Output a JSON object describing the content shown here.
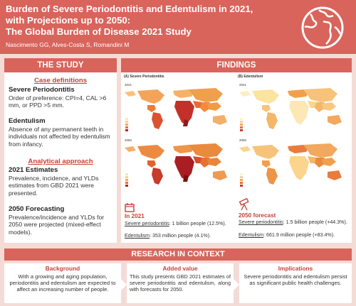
{
  "header": {
    "title_line1": "Burden of Severe Periodontitis and Edentulism in 2021,",
    "title_line2": "with Projections up to 2050:",
    "title_line3": "The Global Burden of Disease 2021 Study",
    "authors": "Nascimento GG, Alves-Costa S, Romandini M"
  },
  "study": {
    "title": "THE STUDY",
    "case_definitions": "Case definitions",
    "perio_heading": "Severe Periodontitis",
    "perio_text": "Order of preference: CPI=4, CAL >6 mm, or PPD >5 mm.",
    "edent_heading": "Edentulism",
    "edent_text": "Absence of any permanent teeth in individuals not affected by edentulism from infancy.",
    "analytical": "Analytical approach",
    "est_heading": "2021 Estimates",
    "est_text": "Prevalence, incidence, and YLDs estimates from GBD 2021 were presented.",
    "fc_heading": "2050 Forecasting",
    "fc_text": "Prevalence/incidence and YLDs for 2050 were projected (mixed-effect models)."
  },
  "findings": {
    "title": "FINDINGS",
    "panel_a": "(A) Severe Periodontitis",
    "panel_b": "(B) Edentulism",
    "year_2021": "2021",
    "year_2050": "2050",
    "in2021_head": "In 2021",
    "in2021_perio_label": "Severe periodontitis",
    "in2021_perio_value": ": 1 billion people (12.5%).",
    "in2021_edent_label": "Edentulism",
    "in2021_edent_value": ": 353 million people (4.1%).",
    "fc_head": "2050 forecast",
    "fc_perio_label": "Severe periodontitis",
    "fc_perio_value": ": 1.5 billion people (+44.3%).",
    "fc_edent_label": "Edentulism",
    "fc_edent_value": ": 661.9 million people (+83.4%)."
  },
  "context": {
    "title": "RESEARCH IN CONTEXT",
    "background_head": "Background",
    "background_text": "With a growing and aging population, periodontitis and edentulism are expected to affect an increasing number of people.",
    "added_head": "Added value",
    "added_text": "This study presents GBD 2021 estimates of severe periodontitis and edentulism, along with forecasts for 2050.",
    "impl_head": "Implications",
    "impl_text": "Severe periodontitis and edentulism persist as significant public health challenges."
  },
  "colors": {
    "brand": "#d9645c",
    "accent": "#c8413a",
    "background": "#f4dbd6"
  }
}
